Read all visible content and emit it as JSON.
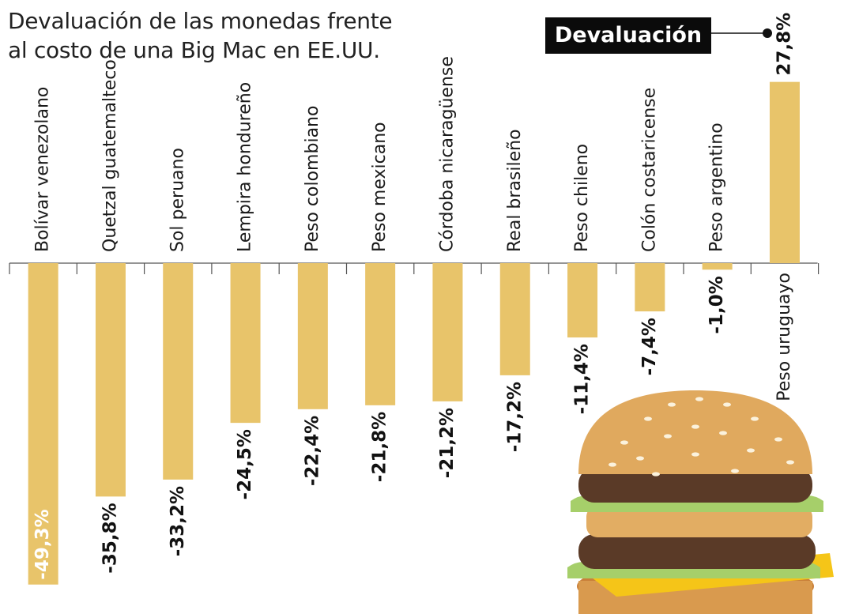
{
  "title_lines": [
    "Devaluación de las monedas frente",
    "al costo de una Big Mac en EE.UU."
  ],
  "legend_label": "Devaluación",
  "bar_color": "#e8c46a",
  "illustration": "big-mac-burger",
  "chart_data": {
    "type": "bar",
    "orientation": "vertical",
    "title": "Devaluación de las monedas frente al costo de una Big Mac en EE.UU.",
    "legend": "Devaluación",
    "categories": [
      "Bolívar venezolano",
      "Quetzal guatemalteco",
      "Sol peruano",
      "Lempira hondureño",
      "Peso colombiano",
      "Peso mexicano",
      "Córdoba nicaragüense",
      "Real brasileño",
      "Peso chileno",
      "Colón costaricense",
      "Peso argentino",
      "Peso uruguayo"
    ],
    "values": [
      -49.3,
      -35.8,
      -33.2,
      -24.5,
      -22.4,
      -21.8,
      -21.2,
      -17.2,
      -11.4,
      -7.4,
      -1.0,
      27.8
    ],
    "value_labels": [
      "-49,3%",
      "-35,8%",
      "-33,2%",
      "-24,5%",
      "-22,4%",
      "-21,8%",
      "-21,2%",
      "-17,2%",
      "-11,4%",
      "-7,4%",
      "-1,0%",
      "27,8%"
    ],
    "unit": "%",
    "grid": false
  }
}
